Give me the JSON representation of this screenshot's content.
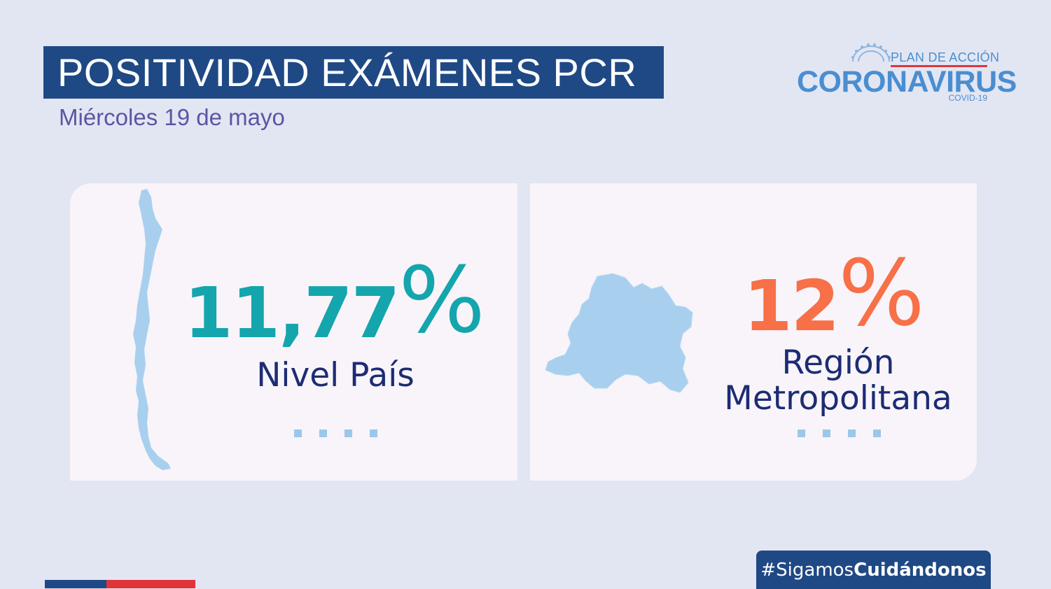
{
  "header": {
    "title": "POSITIVIDAD EXÁMENES PCR",
    "subtitle": "Miércoles 19 de mayo"
  },
  "logo": {
    "top_line": "PLAN DE ACCIÓN",
    "main": "CORONAVIRUS",
    "sub": "COVID-19"
  },
  "cards": [
    {
      "value": "11,77",
      "percent_sign": "%",
      "label": "Nivel País",
      "map_icon": "chile-map-icon",
      "value_color": "#14a5ad"
    },
    {
      "value": "12",
      "percent_sign": "%",
      "label_line1": "Región",
      "label_line2": "Metropolitana",
      "map_icon": "region-metropolitana-map-icon",
      "value_color": "#f77047"
    }
  ],
  "footer": {
    "hashtag_prefix": "#Sigamos",
    "hashtag_bold": "Cuidándonos"
  },
  "colors": {
    "background": "#e2e6f3",
    "navy": "#1f4985",
    "red": "#e13339",
    "map_fill": "#a8d0ee"
  }
}
